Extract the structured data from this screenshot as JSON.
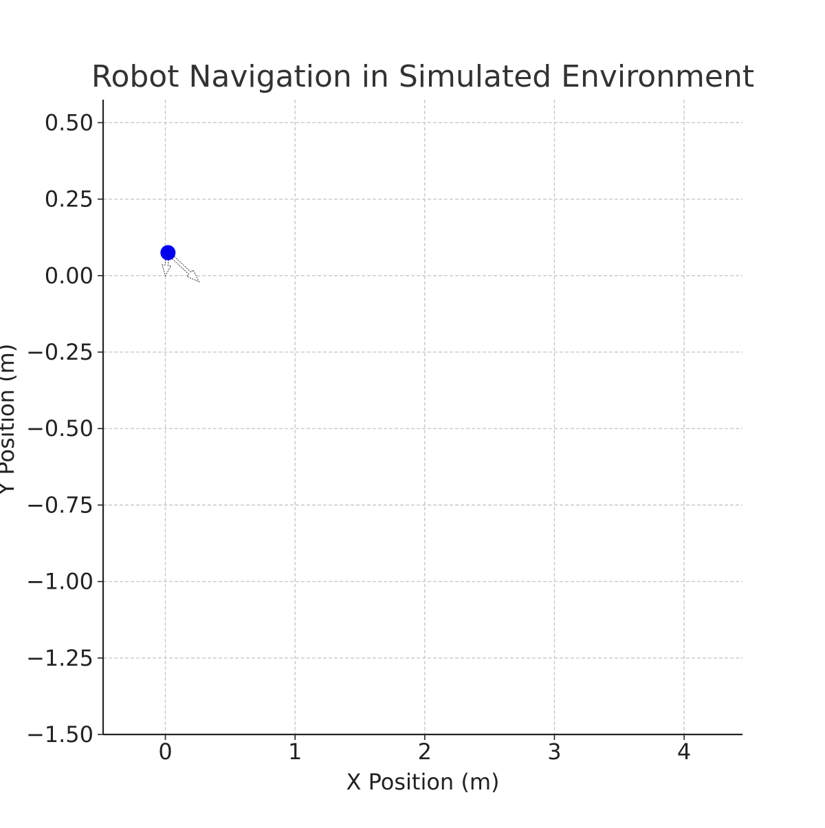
{
  "chart_data": {
    "type": "scatter",
    "title": "Robot Navigation in Simulated Environment",
    "xlabel": "X Position (m)",
    "ylabel": "Y Position (m)",
    "xlim": [
      -0.48,
      4.45
    ],
    "ylim": [
      -1.5,
      0.575
    ],
    "xticks": [
      0,
      1,
      2,
      3,
      4
    ],
    "xtick_labels": [
      "0",
      "1",
      "2",
      "3",
      "4"
    ],
    "yticks": [
      0.5,
      0.25,
      0.0,
      -0.25,
      -0.5,
      -0.75,
      -1.0,
      -1.25,
      -1.5
    ],
    "ytick_labels": [
      "0.50",
      "0.25",
      "0.00",
      "−0.25",
      "−0.50",
      "−0.75",
      "−1.00",
      "−1.25",
      "−1.50"
    ],
    "grid": true,
    "robot": {
      "x": 0.02,
      "y": 0.075,
      "color": "#0000ee"
    },
    "arrows": [
      {
        "x": 0.02,
        "y": 0.075,
        "dx": -0.02,
        "dy": -0.075
      },
      {
        "x": 0.02,
        "y": 0.075,
        "dx": 0.24,
        "dy": -0.095
      }
    ],
    "colors": {
      "grid": "#c8c8c8",
      "axis": "#222222",
      "text": "#222222",
      "title": "#333333"
    }
  }
}
